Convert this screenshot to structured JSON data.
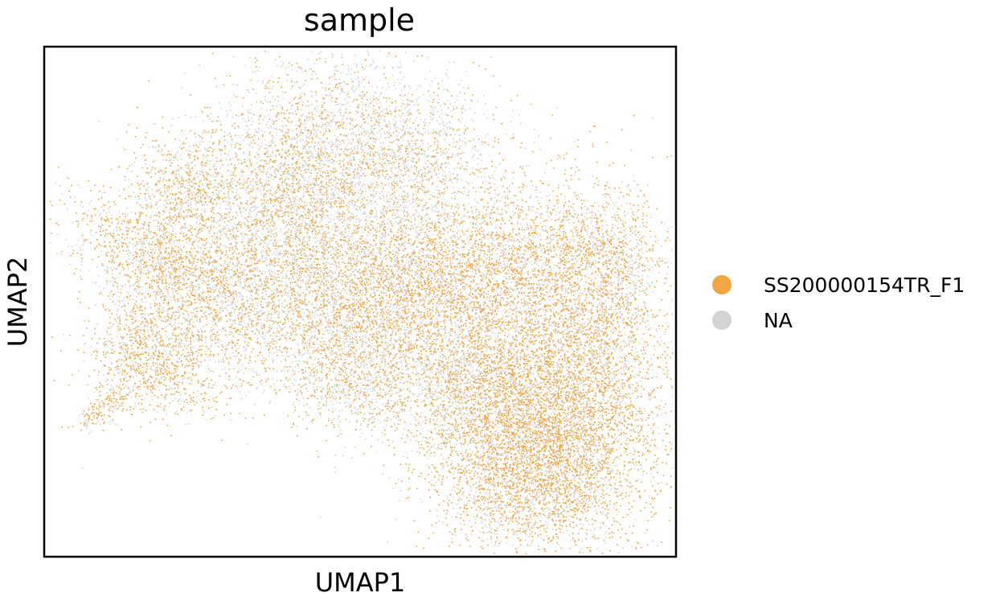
{
  "chart_data": {
    "type": "scatter",
    "title": "sample",
    "xlabel": "UMAP1",
    "ylabel": "UMAP2",
    "grid": false,
    "legend_position": "right",
    "xlim": [
      0,
      100
    ],
    "ylim": [
      0,
      100
    ],
    "series": [
      {
        "name": "SS200000154TR_F1",
        "color": "#f0a742"
      },
      {
        "name": "NA",
        "color": "#d3d3d3"
      }
    ]
  }
}
